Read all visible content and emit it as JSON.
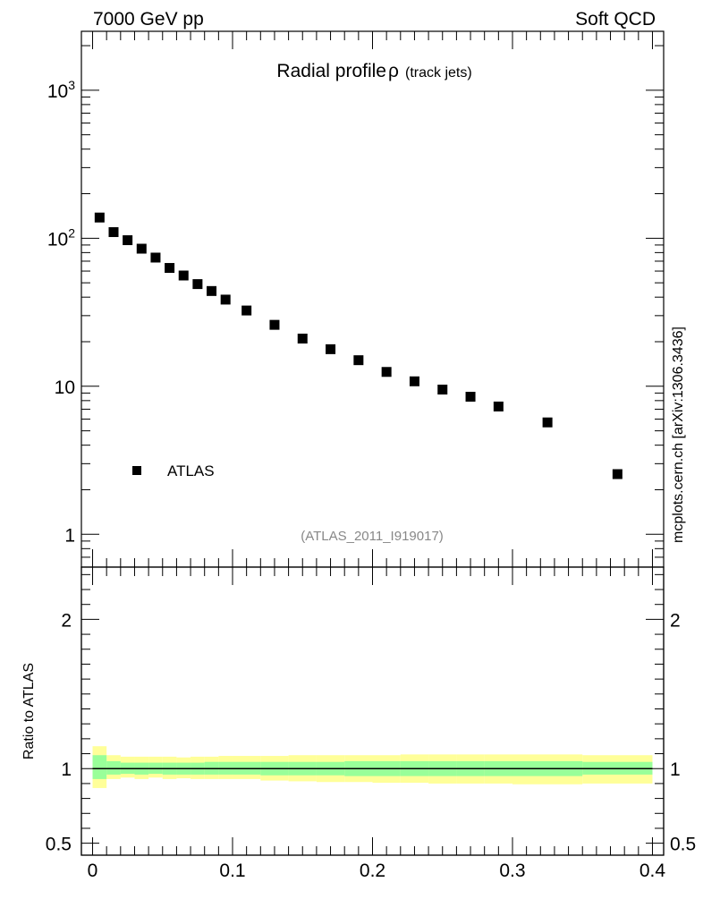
{
  "header": {
    "left_label": "7000 GeV pp",
    "right_label": "Soft QCD"
  },
  "side_label": "mcplots.cern.ch [arXiv:1306.3436]",
  "chart_data": [
    {
      "type": "scatter",
      "panel": "main",
      "title": "Radial profile",
      "title_symbol": "ρ",
      "subtitle": "(track jets)",
      "analysis_label": "(ATLAS_2011_I919017)",
      "y_scale": "log",
      "xlim": [
        -0.008,
        0.408
      ],
      "ylim": [
        0.6,
        2500
      ],
      "y_ticks": [
        {
          "value": 1,
          "base": "1",
          "exp": ""
        },
        {
          "value": 10,
          "base": "10",
          "exp": ""
        },
        {
          "value": 100,
          "base": "10",
          "exp": "2"
        },
        {
          "value": 1000,
          "base": "10",
          "exp": "3"
        }
      ],
      "legend": {
        "position": "lower-left",
        "entries": [
          "ATLAS"
        ]
      },
      "series": [
        {
          "name": "ATLAS",
          "marker": "square",
          "color": "#000000",
          "x": [
            0.005,
            0.015,
            0.025,
            0.035,
            0.045,
            0.055,
            0.065,
            0.075,
            0.085,
            0.095,
            0.11,
            0.13,
            0.15,
            0.17,
            0.19,
            0.21,
            0.23,
            0.25,
            0.27,
            0.29,
            0.325,
            0.375
          ],
          "y": [
            138,
            110,
            97,
            85,
            74,
            63,
            56,
            49,
            44,
            38.5,
            32.5,
            26,
            21,
            17.8,
            15,
            12.5,
            10.8,
            9.5,
            8.5,
            7.3,
            5.7,
            2.55
          ]
        }
      ]
    },
    {
      "type": "area",
      "panel": "ratio",
      "ylabel": "Ratio to ATLAS",
      "xlim": [
        -0.008,
        0.408
      ],
      "ylim": [
        0.42,
        2.35
      ],
      "x_ticks": [
        0,
        0.1,
        0.2,
        0.3,
        0.4
      ],
      "x_tick_labels": [
        "0",
        "0.1",
        "0.2",
        "0.3",
        "0.4"
      ],
      "y_ticks": [
        0.5,
        1,
        2
      ],
      "y_tick_labels": [
        "0.5",
        "1",
        "2"
      ],
      "reference_line": 1,
      "bins": [
        [
          0.0,
          0.01
        ],
        [
          0.01,
          0.02
        ],
        [
          0.02,
          0.03
        ],
        [
          0.03,
          0.04
        ],
        [
          0.04,
          0.05
        ],
        [
          0.05,
          0.06
        ],
        [
          0.06,
          0.07
        ],
        [
          0.07,
          0.08
        ],
        [
          0.08,
          0.09
        ],
        [
          0.09,
          0.1
        ],
        [
          0.1,
          0.12
        ],
        [
          0.12,
          0.14
        ],
        [
          0.14,
          0.16
        ],
        [
          0.16,
          0.18
        ],
        [
          0.18,
          0.2
        ],
        [
          0.2,
          0.22
        ],
        [
          0.22,
          0.24
        ],
        [
          0.24,
          0.26
        ],
        [
          0.26,
          0.28
        ],
        [
          0.28,
          0.3
        ],
        [
          0.3,
          0.35
        ],
        [
          0.35,
          0.4
        ]
      ],
      "bands": [
        {
          "color": "#ffff99",
          "low": [
            0.87,
            0.93,
            0.94,
            0.93,
            0.94,
            0.93,
            0.935,
            0.93,
            0.93,
            0.93,
            0.93,
            0.92,
            0.915,
            0.91,
            0.91,
            0.905,
            0.905,
            0.9,
            0.9,
            0.9,
            0.895,
            0.9
          ],
          "high": [
            1.15,
            1.09,
            1.08,
            1.08,
            1.08,
            1.08,
            1.075,
            1.08,
            1.08,
            1.085,
            1.085,
            1.085,
            1.09,
            1.09,
            1.09,
            1.09,
            1.095,
            1.095,
            1.095,
            1.095,
            1.095,
            1.09
          ]
        },
        {
          "color": "#99ff99",
          "low": [
            0.93,
            0.96,
            0.965,
            0.96,
            0.965,
            0.96,
            0.96,
            0.96,
            0.96,
            0.96,
            0.96,
            0.955,
            0.955,
            0.955,
            0.95,
            0.95,
            0.95,
            0.95,
            0.95,
            0.95,
            0.95,
            0.96
          ],
          "high": [
            1.09,
            1.05,
            1.04,
            1.04,
            1.04,
            1.04,
            1.04,
            1.04,
            1.045,
            1.045,
            1.045,
            1.045,
            1.045,
            1.045,
            1.05,
            1.05,
            1.05,
            1.05,
            1.05,
            1.05,
            1.05,
            1.045
          ]
        }
      ]
    }
  ]
}
